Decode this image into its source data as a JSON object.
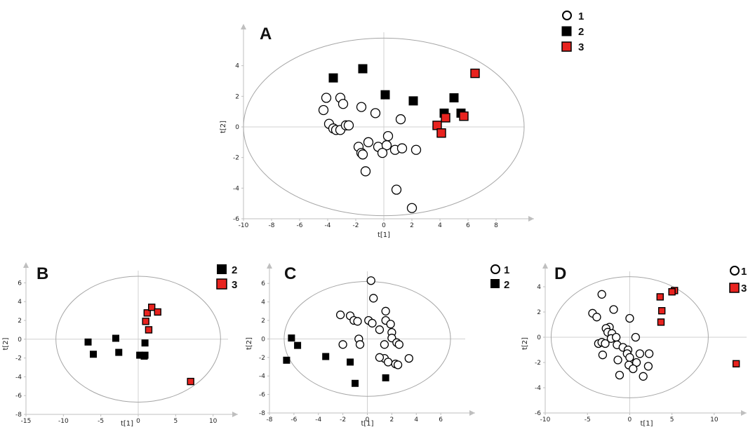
{
  "colors": {
    "group1_fill": "#ffffff",
    "group2_fill": "#000000",
    "group3_fill": "#e8231f",
    "axis": "#bfbfbf",
    "ellipse": "#a6a6a6"
  },
  "chart_data": [
    {
      "type": "scatter",
      "panel_label": "A",
      "xlabel": "t[1]",
      "ylabel": "t[2]",
      "xlim": [
        -10,
        10
      ],
      "ylim": [
        -6,
        6
      ],
      "xticks": [
        -10,
        -8,
        -6,
        -4,
        -2,
        0,
        2,
        4,
        6,
        8
      ],
      "yticks": [
        -6,
        -4,
        -2,
        0,
        2,
        4
      ],
      "ellipse": {
        "rx": 10,
        "ry": 5.8
      },
      "legend": [
        "1",
        "2",
        "3"
      ],
      "series": [
        {
          "name": "1",
          "marker": "circle",
          "points": [
            [
              -4.1,
              1.9
            ],
            [
              -3.1,
              1.9
            ],
            [
              -2.9,
              1.5
            ],
            [
              -4.3,
              1.1
            ],
            [
              -1.6,
              1.3
            ],
            [
              -0.6,
              0.9
            ],
            [
              -3.9,
              0.2
            ],
            [
              -3.6,
              -0.1
            ],
            [
              -3.4,
              -0.2
            ],
            [
              -3.1,
              -0.2
            ],
            [
              -2.7,
              0.1
            ],
            [
              -2.5,
              0.1
            ],
            [
              1.2,
              0.5
            ],
            [
              0.3,
              -0.6
            ],
            [
              -1.1,
              -1.0
            ],
            [
              -1.8,
              -1.3
            ],
            [
              -1.6,
              -1.7
            ],
            [
              -1.5,
              -1.8
            ],
            [
              -0.4,
              -1.3
            ],
            [
              0.2,
              -1.2
            ],
            [
              -0.1,
              -1.7
            ],
            [
              0.8,
              -1.5
            ],
            [
              1.3,
              -1.4
            ],
            [
              2.3,
              -1.5
            ],
            [
              -1.3,
              -2.9
            ],
            [
              0.9,
              -4.1
            ],
            [
              2.0,
              -5.3
            ]
          ]
        },
        {
          "name": "2",
          "marker": "square",
          "points": [
            [
              -3.6,
              3.2
            ],
            [
              -1.5,
              3.8
            ],
            [
              0.1,
              2.1
            ],
            [
              2.1,
              1.7
            ],
            [
              5.0,
              1.9
            ],
            [
              4.3,
              0.9
            ],
            [
              5.5,
              0.9
            ]
          ]
        },
        {
          "name": "3",
          "marker": "square",
          "points": [
            [
              6.5,
              3.5
            ],
            [
              4.4,
              0.6
            ],
            [
              5.7,
              0.7
            ],
            [
              3.8,
              0.1
            ],
            [
              4.1,
              -0.4
            ]
          ]
        }
      ]
    },
    {
      "type": "scatter",
      "panel_label": "B",
      "xlabel": "t[1]",
      "ylabel": "t[2]",
      "xlim": [
        -15,
        12
      ],
      "ylim": [
        -8,
        7
      ],
      "xticks": [
        -15,
        -10,
        -5,
        0,
        5,
        10
      ],
      "yticks": [
        -8,
        -6,
        -4,
        -2,
        0,
        2,
        4,
        6
      ],
      "ellipse": {
        "rx": 11,
        "ry": 6.7
      },
      "legend": [
        "2",
        "3"
      ],
      "series": [
        {
          "name": "2",
          "marker": "square",
          "points": [
            [
              -6.7,
              -0.3
            ],
            [
              -6.0,
              -1.6
            ],
            [
              -3.0,
              0.1
            ],
            [
              -2.6,
              -1.4
            ],
            [
              0.2,
              -1.7
            ],
            [
              0.8,
              -1.8
            ],
            [
              0.9,
              -0.4
            ],
            [
              0.9,
              -1.7
            ]
          ]
        },
        {
          "name": "3",
          "marker": "square",
          "points": [
            [
              1.2,
              2.8
            ],
            [
              1.8,
              3.4
            ],
            [
              2.6,
              2.9
            ],
            [
              1.0,
              1.9
            ],
            [
              1.4,
              1.0
            ],
            [
              7.0,
              -4.5
            ]
          ]
        }
      ]
    },
    {
      "type": "scatter",
      "panel_label": "C",
      "xlabel": "t[1]",
      "ylabel": "t[2]",
      "xlim": [
        -8,
        8
      ],
      "ylim": [
        -8,
        7
      ],
      "xticks": [
        -8,
        -6,
        -4,
        -2,
        0,
        2,
        4,
        6
      ],
      "yticks": [
        -8,
        -6,
        -4,
        -2,
        0,
        2,
        4,
        6
      ],
      "ellipse": {
        "rx": 6.8,
        "ry": 6.2
      },
      "legend": [
        "1",
        "2"
      ],
      "series": [
        {
          "name": "1",
          "marker": "circle",
          "points": [
            [
              0.3,
              6.3
            ],
            [
              0.5,
              4.4
            ],
            [
              1.5,
              3.0
            ],
            [
              -2.2,
              2.6
            ],
            [
              -1.4,
              2.5
            ],
            [
              -1.1,
              2.0
            ],
            [
              -0.8,
              1.9
            ],
            [
              0.1,
              2.0
            ],
            [
              0.4,
              1.7
            ],
            [
              1.5,
              2.0
            ],
            [
              1.9,
              1.6
            ],
            [
              2.0,
              0.7
            ],
            [
              1.0,
              1.0
            ],
            [
              2.0,
              0.1
            ],
            [
              -0.7,
              0.0
            ],
            [
              -0.6,
              -0.6
            ],
            [
              -2.0,
              -0.6
            ],
            [
              1.4,
              -0.6
            ],
            [
              2.4,
              -0.4
            ],
            [
              2.6,
              -0.6
            ],
            [
              3.4,
              -2.1
            ],
            [
              1.4,
              -2.1
            ],
            [
              1.0,
              -2.0
            ],
            [
              1.7,
              -2.5
            ],
            [
              2.3,
              -2.7
            ],
            [
              2.5,
              -2.8
            ]
          ]
        },
        {
          "name": "2",
          "marker": "square",
          "points": [
            [
              -6.2,
              0.1
            ],
            [
              -5.7,
              -0.7
            ],
            [
              -6.6,
              -2.3
            ],
            [
              -3.4,
              -1.9
            ],
            [
              -1.4,
              -2.5
            ],
            [
              -1.0,
              -4.8
            ],
            [
              1.5,
              -4.2
            ]
          ]
        }
      ]
    },
    {
      "type": "scatter",
      "panel_label": "D",
      "xlabel": "t[1]",
      "ylabel": "t[2]",
      "xlim": [
        -10,
        14
      ],
      "ylim": [
        -6,
        5
      ],
      "xticks": [
        -10,
        -5,
        0,
        5,
        10
      ],
      "yticks": [
        -6,
        -4,
        -2,
        0,
        2,
        4
      ],
      "ellipse": {
        "rx": 9.3,
        "ry": 4.8
      },
      "legend": [
        "1",
        "3"
      ],
      "series": [
        {
          "name": "1",
          "marker": "circle",
          "points": [
            [
              -3.3,
              3.4
            ],
            [
              -4.4,
              1.9
            ],
            [
              -3.9,
              1.6
            ],
            [
              -1.9,
              2.2
            ],
            [
              -2.4,
              0.8
            ],
            [
              -2.8,
              0.7
            ],
            [
              -2.6,
              0.4
            ],
            [
              -2.1,
              0.3
            ],
            [
              0.0,
              1.5
            ],
            [
              -2.2,
              -0.1
            ],
            [
              -1.6,
              0.0
            ],
            [
              0.7,
              0.0
            ],
            [
              -3.7,
              -0.5
            ],
            [
              -3.3,
              -0.4
            ],
            [
              -2.9,
              -0.5
            ],
            [
              -1.5,
              -0.6
            ],
            [
              -0.8,
              -0.8
            ],
            [
              -0.2,
              -1.0
            ],
            [
              -0.3,
              -1.3
            ],
            [
              -3.2,
              -1.4
            ],
            [
              1.2,
              -1.3
            ],
            [
              2.3,
              -1.3
            ],
            [
              -1.4,
              -1.8
            ],
            [
              0.8,
              -2.0
            ],
            [
              -0.1,
              -2.2
            ],
            [
              0.4,
              -2.5
            ],
            [
              2.2,
              -2.3
            ],
            [
              -1.2,
              -3.0
            ],
            [
              1.6,
              -3.1
            ],
            [
              0.0,
              -1.6
            ]
          ]
        },
        {
          "name": "3",
          "marker": "square",
          "points": [
            [
              3.6,
              3.2
            ],
            [
              5.3,
              3.7
            ],
            [
              5.0,
              3.6
            ],
            [
              3.8,
              2.1
            ],
            [
              3.7,
              1.2
            ],
            [
              12.6,
              -2.1
            ]
          ]
        }
      ]
    }
  ]
}
